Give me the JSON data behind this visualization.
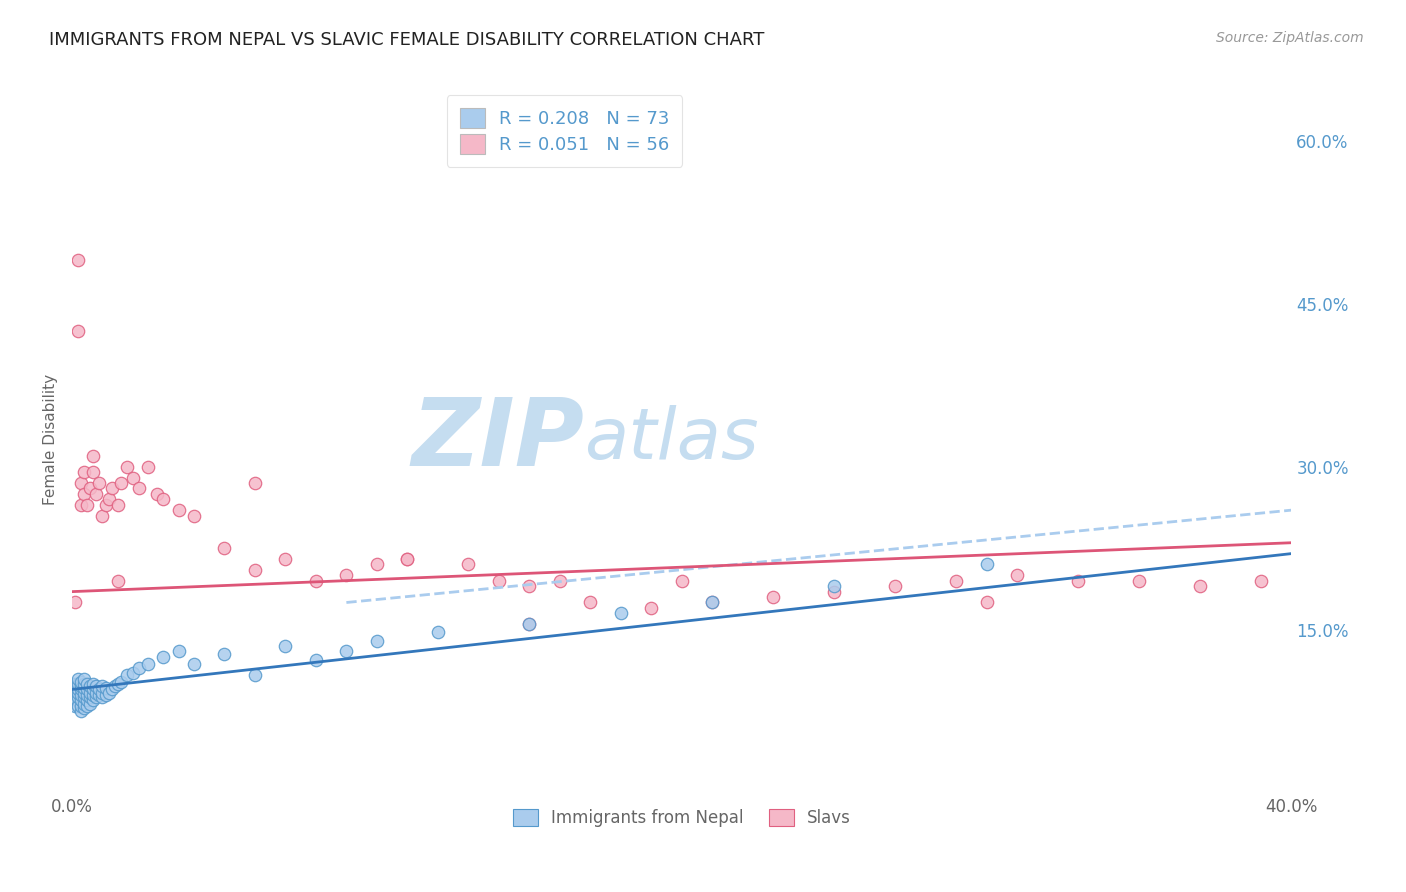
{
  "title": "IMMIGRANTS FROM NEPAL VS SLAVIC FEMALE DISABILITY CORRELATION CHART",
  "source": "Source: ZipAtlas.com",
  "ylabel": "Female Disability",
  "xlim": [
    0.0,
    0.4
  ],
  "ylim": [
    0.0,
    0.65
  ],
  "ytick_positions_right": [
    0.6,
    0.45,
    0.3,
    0.15
  ],
  "ytick_labels_right": [
    "60.0%",
    "45.0%",
    "30.0%",
    "15.0%"
  ],
  "legend_entries": [
    {
      "label": "Immigrants from Nepal",
      "color": "#aacced",
      "edge_color": "#5599cc",
      "R": "0.208",
      "N": "73"
    },
    {
      "label": "Slavs",
      "color": "#f5b8c8",
      "edge_color": "#e06080",
      "R": "0.051",
      "N": "56"
    }
  ],
  "nepal_scatter_x": [
    0.0005,
    0.001,
    0.001,
    0.001,
    0.001,
    0.0015,
    0.002,
    0.002,
    0.002,
    0.002,
    0.002,
    0.002,
    0.003,
    0.003,
    0.003,
    0.003,
    0.003,
    0.003,
    0.003,
    0.004,
    0.004,
    0.004,
    0.004,
    0.004,
    0.004,
    0.004,
    0.005,
    0.005,
    0.005,
    0.005,
    0.005,
    0.006,
    0.006,
    0.006,
    0.006,
    0.007,
    0.007,
    0.007,
    0.007,
    0.008,
    0.008,
    0.008,
    0.009,
    0.009,
    0.01,
    0.01,
    0.01,
    0.011,
    0.011,
    0.012,
    0.013,
    0.014,
    0.015,
    0.016,
    0.018,
    0.02,
    0.022,
    0.025,
    0.03,
    0.035,
    0.04,
    0.05,
    0.06,
    0.07,
    0.08,
    0.09,
    0.1,
    0.12,
    0.15,
    0.18,
    0.21,
    0.25,
    0.3
  ],
  "nepal_scatter_y": [
    0.085,
    0.08,
    0.09,
    0.095,
    0.1,
    0.085,
    0.08,
    0.088,
    0.092,
    0.095,
    0.1,
    0.105,
    0.075,
    0.08,
    0.085,
    0.09,
    0.095,
    0.098,
    0.102,
    0.078,
    0.082,
    0.088,
    0.092,
    0.096,
    0.1,
    0.105,
    0.08,
    0.085,
    0.09,
    0.095,
    0.1,
    0.082,
    0.088,
    0.092,
    0.098,
    0.085,
    0.09,
    0.095,
    0.1,
    0.088,
    0.092,
    0.098,
    0.09,
    0.095,
    0.088,
    0.092,
    0.098,
    0.09,
    0.096,
    0.092,
    0.095,
    0.098,
    0.1,
    0.102,
    0.108,
    0.11,
    0.115,
    0.118,
    0.125,
    0.13,
    0.118,
    0.128,
    0.108,
    0.135,
    0.122,
    0.13,
    0.14,
    0.148,
    0.155,
    0.165,
    0.175,
    0.19,
    0.21
  ],
  "slavic_scatter_x": [
    0.001,
    0.002,
    0.002,
    0.003,
    0.003,
    0.004,
    0.004,
    0.005,
    0.006,
    0.007,
    0.007,
    0.008,
    0.009,
    0.01,
    0.011,
    0.012,
    0.013,
    0.015,
    0.016,
    0.018,
    0.02,
    0.022,
    0.025,
    0.028,
    0.03,
    0.035,
    0.04,
    0.05,
    0.06,
    0.07,
    0.08,
    0.09,
    0.1,
    0.11,
    0.13,
    0.15,
    0.17,
    0.19,
    0.21,
    0.23,
    0.25,
    0.27,
    0.29,
    0.31,
    0.33,
    0.35,
    0.37,
    0.39,
    0.015,
    0.06,
    0.11,
    0.15,
    0.2,
    0.3,
    0.14,
    0.16
  ],
  "slavic_scatter_y": [
    0.175,
    0.49,
    0.425,
    0.265,
    0.285,
    0.275,
    0.295,
    0.265,
    0.28,
    0.295,
    0.31,
    0.275,
    0.285,
    0.255,
    0.265,
    0.27,
    0.28,
    0.265,
    0.285,
    0.3,
    0.29,
    0.28,
    0.3,
    0.275,
    0.27,
    0.26,
    0.255,
    0.225,
    0.205,
    0.215,
    0.195,
    0.2,
    0.21,
    0.215,
    0.21,
    0.155,
    0.175,
    0.17,
    0.175,
    0.18,
    0.185,
    0.19,
    0.195,
    0.2,
    0.195,
    0.195,
    0.19,
    0.195,
    0.195,
    0.285,
    0.215,
    0.19,
    0.195,
    0.175,
    0.195,
    0.195
  ],
  "nepal_trend_x": [
    0.0,
    0.4
  ],
  "nepal_trend_y": [
    0.095,
    0.22
  ],
  "nepal_dash_trend_x": [
    0.09,
    0.4
  ],
  "nepal_dash_trend_y": [
    0.175,
    0.26
  ],
  "slavic_trend_x": [
    0.0,
    0.4
  ],
  "slavic_trend_y": [
    0.185,
    0.23
  ],
  "nepal_line_color": "#3377bb",
  "nepal_dash_color": "#aaccee",
  "slavic_line_color": "#dd5577",
  "nepal_scatter_color": "#aacced",
  "slavic_scatter_color": "#f5b8c8",
  "nepal_edge_color": "#5599cc",
  "slavic_edge_color": "#e06080",
  "background_color": "#ffffff",
  "grid_color": "#cccccc",
  "title_color": "#222222",
  "label_color": "#666666",
  "right_tick_color": "#5599cc",
  "watermark_zip_color": "#c5ddf0",
  "watermark_atlas_color": "#c5ddf0"
}
